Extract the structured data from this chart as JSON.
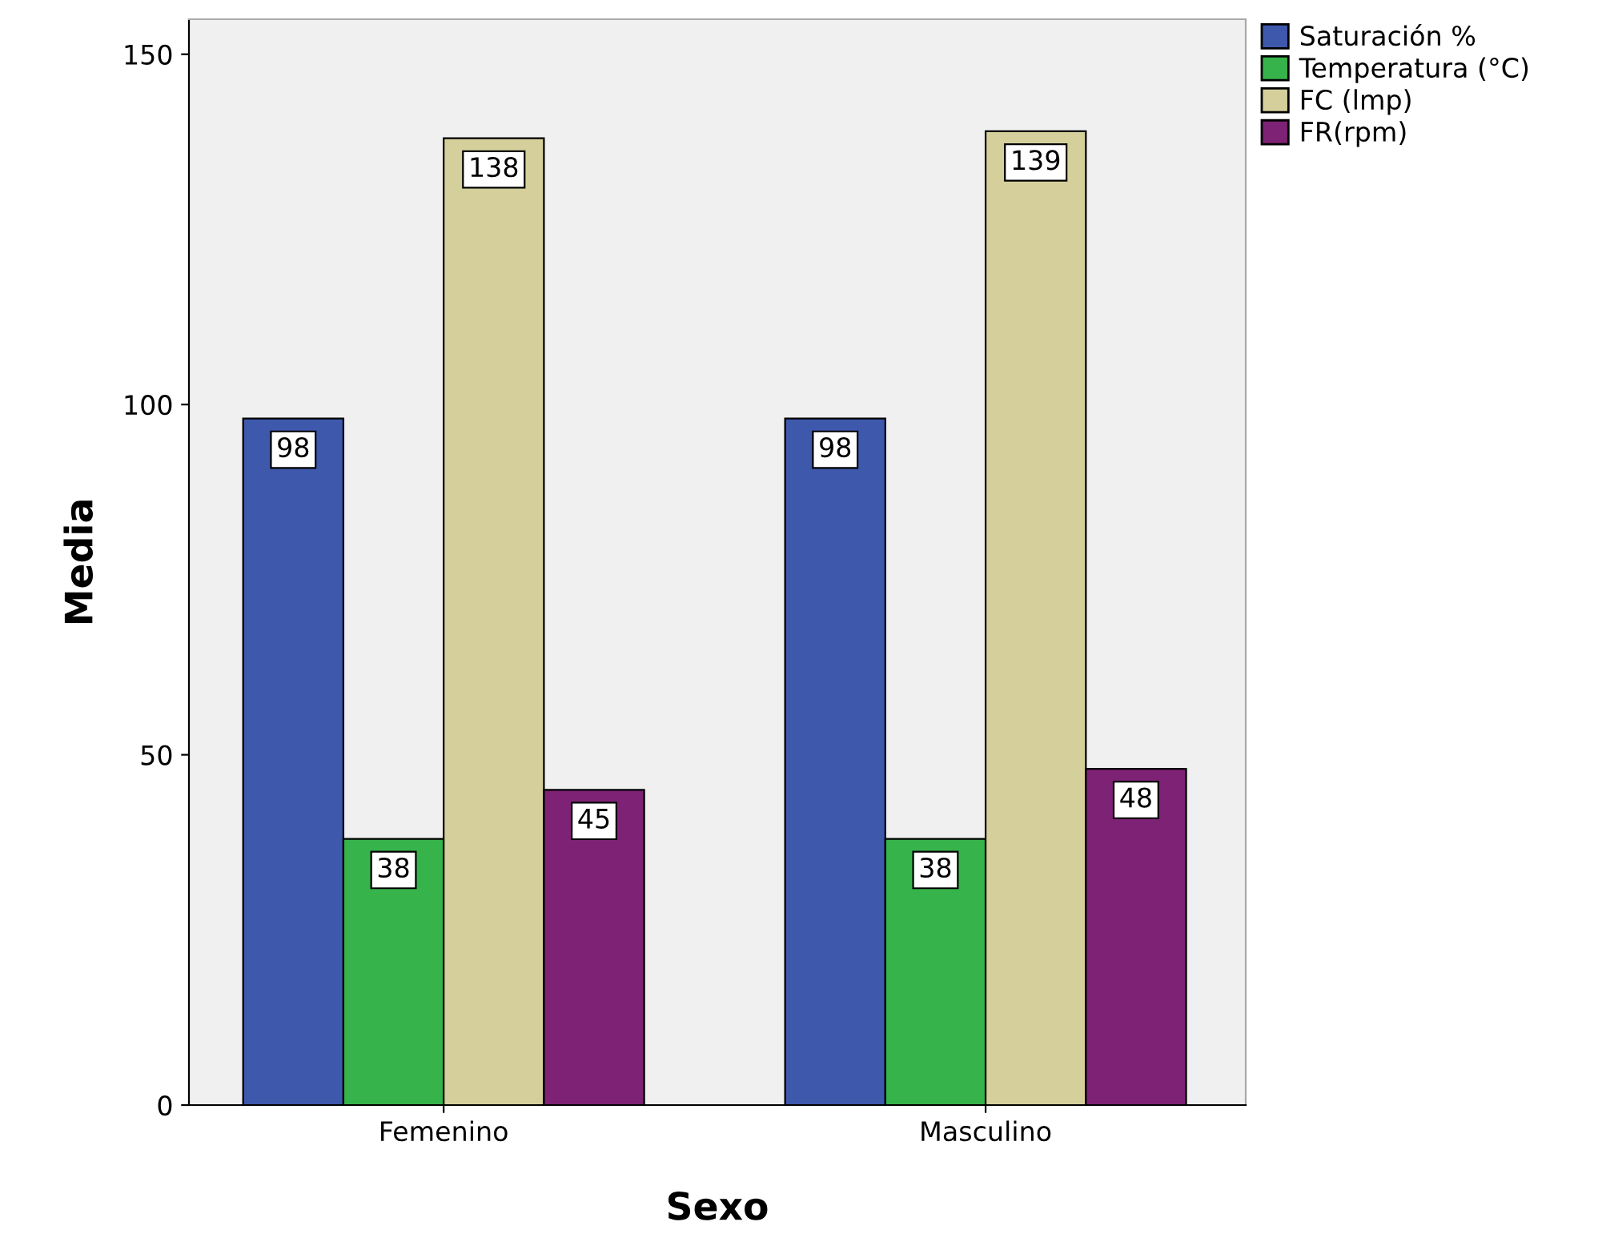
{
  "chart_data": {
    "type": "bar",
    "xlabel": "Sexo",
    "ylabel": "Media",
    "categories": [
      "Femenino",
      "Masculino"
    ],
    "series": [
      {
        "name": "Saturación %",
        "color": "#3e58ac",
        "values": [
          98,
          98
        ]
      },
      {
        "name": "Temperatura (°C)",
        "color": "#36b34a",
        "values": [
          38,
          38
        ]
      },
      {
        "name": "FC (lmp)",
        "color": "#d5cf9b",
        "values": [
          138,
          139
        ]
      },
      {
        "name": "FR(rpm)",
        "color": "#7d2274",
        "values": [
          45,
          48
        ]
      }
    ],
    "ylim": [
      0,
      155
    ],
    "yticks": [
      0,
      50,
      100,
      150
    ],
    "grid": false,
    "legend": "top right",
    "data_labels": true
  }
}
